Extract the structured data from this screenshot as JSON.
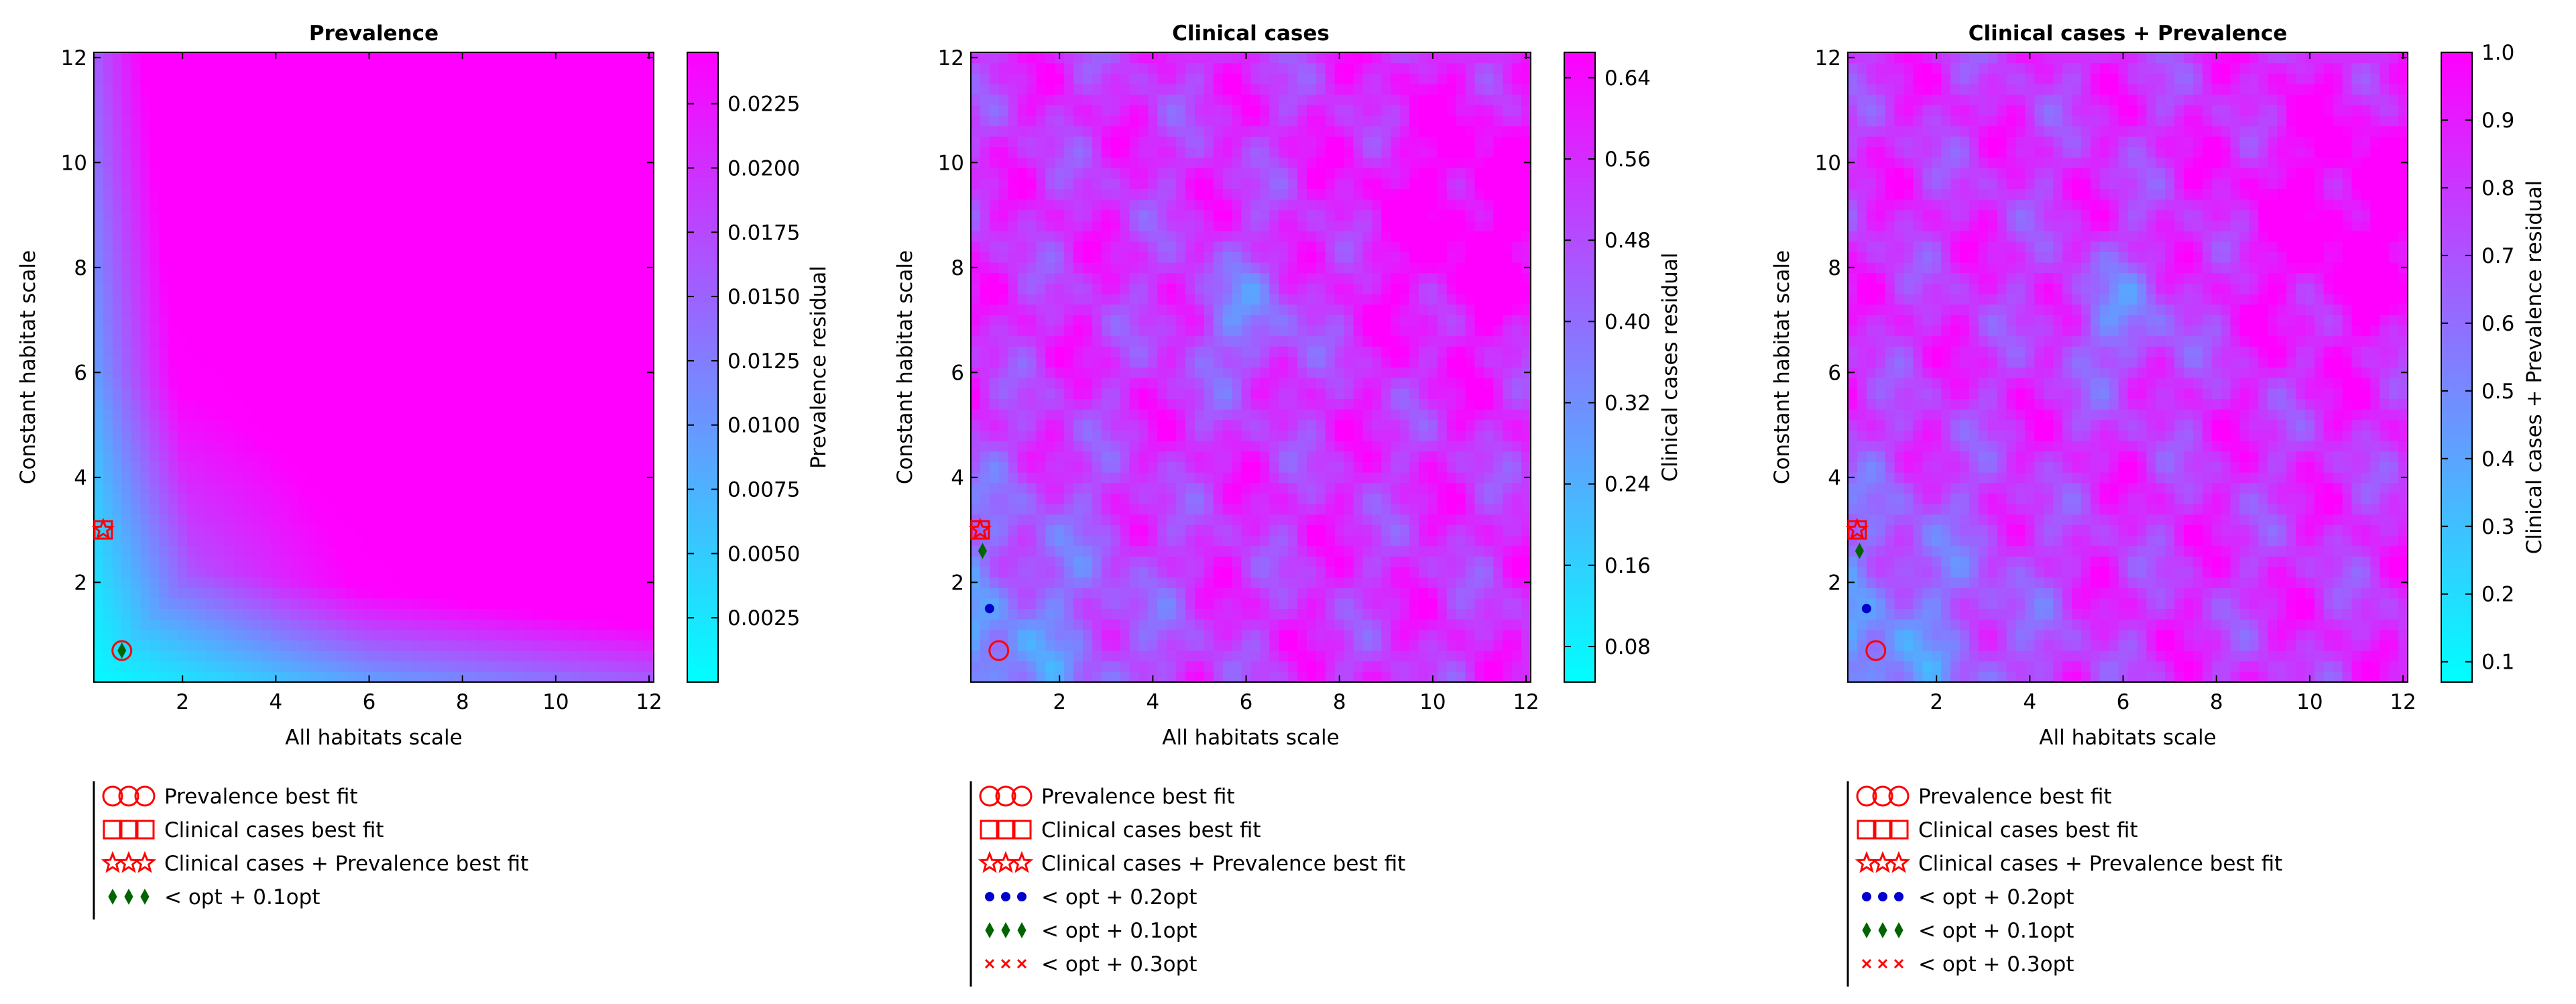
{
  "figure": {
    "legend_labels": {
      "prevalence_best": "Prevalence best fit",
      "clinical_best": "Clinical cases best fit",
      "combined_best": "Clinical cases + Prevalence best fit",
      "opt_02": "< opt + 0.2opt",
      "opt_01": "< opt + 0.1opt",
      "opt_03": "< opt + 0.3opt"
    }
  },
  "colors": {
    "colormap_low": "#00ffff",
    "colormap_high": "#ff00ff",
    "marker_red": "#ff0000",
    "marker_green": "#006400",
    "marker_blue": "#0000cc"
  },
  "chart_data": [
    {
      "type": "heatmap",
      "title": "Prevalence",
      "xlabel": "All habitats scale",
      "ylabel": "Constant habitat scale",
      "xlim": [
        0.1,
        12.1
      ],
      "ylim": [
        0.1,
        12.1
      ],
      "xticks": [
        "2",
        "4",
        "6",
        "8",
        "10",
        "12"
      ],
      "yticks": [
        "2",
        "4",
        "6",
        "8",
        "10",
        "12"
      ],
      "colorbar_label": "Prevalence residual",
      "colorbar_range": [
        0.0,
        0.0245
      ],
      "colorbar_ticks": [
        "0.0025",
        "0.0050",
        "0.0075",
        "0.0100",
        "0.0125",
        "0.0150",
        "0.0175",
        "0.0200",
        "0.0225"
      ],
      "surface": "smooth",
      "markers": {
        "prevalence_best": [
          [
            0.7,
            0.7
          ]
        ],
        "clinical_best": [
          [
            0.3,
            3.0
          ]
        ],
        "combined_best": [
          [
            0.3,
            3.0
          ]
        ],
        "opt_01": [
          [
            0.7,
            0.7
          ]
        ]
      },
      "legend": [
        "prevalence_best",
        "clinical_best",
        "combined_best",
        "opt_01"
      ]
    },
    {
      "type": "heatmap",
      "title": "Clinical cases",
      "xlabel": "All habitats scale",
      "ylabel": "Constant habitat scale",
      "xlim": [
        0.1,
        12.1
      ],
      "ylim": [
        0.1,
        12.1
      ],
      "xticks": [
        "2",
        "4",
        "6",
        "8",
        "10",
        "12"
      ],
      "yticks": [
        "2",
        "4",
        "6",
        "8",
        "10",
        "12"
      ],
      "colorbar_label": "Clinical cases residual",
      "colorbar_range": [
        0.045,
        0.665
      ],
      "colorbar_ticks": [
        "0.08",
        "0.16",
        "0.24",
        "0.32",
        "0.40",
        "0.48",
        "0.56",
        "0.64"
      ],
      "surface": "noisy",
      "markers": {
        "prevalence_best": [
          [
            0.7,
            0.7
          ]
        ],
        "clinical_best": [
          [
            0.3,
            3.0
          ]
        ],
        "combined_best": [
          [
            0.3,
            3.0
          ]
        ],
        "opt_02": [
          [
            0.5,
            1.5
          ]
        ],
        "opt_01": [
          [
            0.35,
            2.6
          ]
        ]
      },
      "legend": [
        "prevalence_best",
        "clinical_best",
        "combined_best",
        "opt_02",
        "opt_01",
        "opt_03"
      ]
    },
    {
      "type": "heatmap",
      "title": "Clinical cases + Prevalence",
      "xlabel": "All habitats scale",
      "ylabel": "Constant habitat scale",
      "xlim": [
        0.1,
        12.1
      ],
      "ylim": [
        0.1,
        12.1
      ],
      "xticks": [
        "2",
        "4",
        "6",
        "8",
        "10",
        "12"
      ],
      "yticks": [
        "2",
        "4",
        "6",
        "8",
        "10",
        "12"
      ],
      "colorbar_label": "Clinical cases + Prevalence residual",
      "colorbar_range": [
        0.07,
        1.0
      ],
      "colorbar_ticks": [
        "0.1",
        "0.2",
        "0.3",
        "0.4",
        "0.5",
        "0.6",
        "0.7",
        "0.8",
        "0.9",
        "1.0"
      ],
      "surface": "noisy",
      "markers": {
        "prevalence_best": [
          [
            0.7,
            0.7
          ]
        ],
        "clinical_best": [
          [
            0.3,
            3.0
          ]
        ],
        "combined_best": [
          [
            0.3,
            3.0
          ]
        ],
        "opt_02": [
          [
            0.5,
            1.5
          ]
        ],
        "opt_01": [
          [
            0.35,
            2.6
          ]
        ]
      },
      "legend": [
        "prevalence_best",
        "clinical_best",
        "combined_best",
        "opt_02",
        "opt_01",
        "opt_03"
      ]
    }
  ]
}
